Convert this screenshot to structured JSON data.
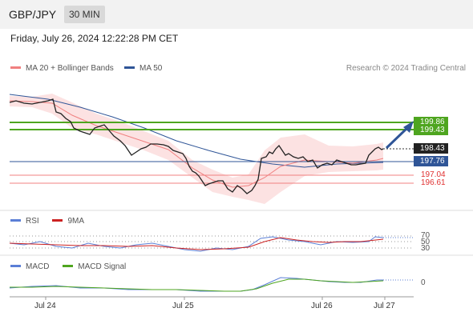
{
  "header": {
    "pair": "GBP/JPY",
    "timeframe": "30 MIN"
  },
  "timestamp": "Friday, July 26, 2024 12:22:28 PM CET",
  "legend": {
    "ma20_label": "MA 20 + Bollinger Bands",
    "ma50_label": "MA 50",
    "credit": "Research © 2024 Trading Central"
  },
  "colors": {
    "ma20": "#f08080",
    "ma50": "#2f5597",
    "resistance": "#4ea51f",
    "support_red": "#e03030",
    "price": "#222222",
    "arrow": "#2f5597"
  },
  "levels": {
    "resistance2": "199.86",
    "resistance1": "199.43",
    "last": "198.43",
    "pivot": "197.76",
    "support1": "197.04",
    "support2": "196.61"
  },
  "rsi": {
    "label": "RSI",
    "ma_label": "9MA",
    "ticks": [
      "70",
      "50",
      "30"
    ]
  },
  "macd": {
    "label": "MACD",
    "signal_label": "MACD Signal",
    "tick": "0"
  },
  "xaxis": {
    "labels": [
      "Jul 24",
      "Jul 25",
      "Jul 26",
      "Jul 27"
    ]
  }
}
